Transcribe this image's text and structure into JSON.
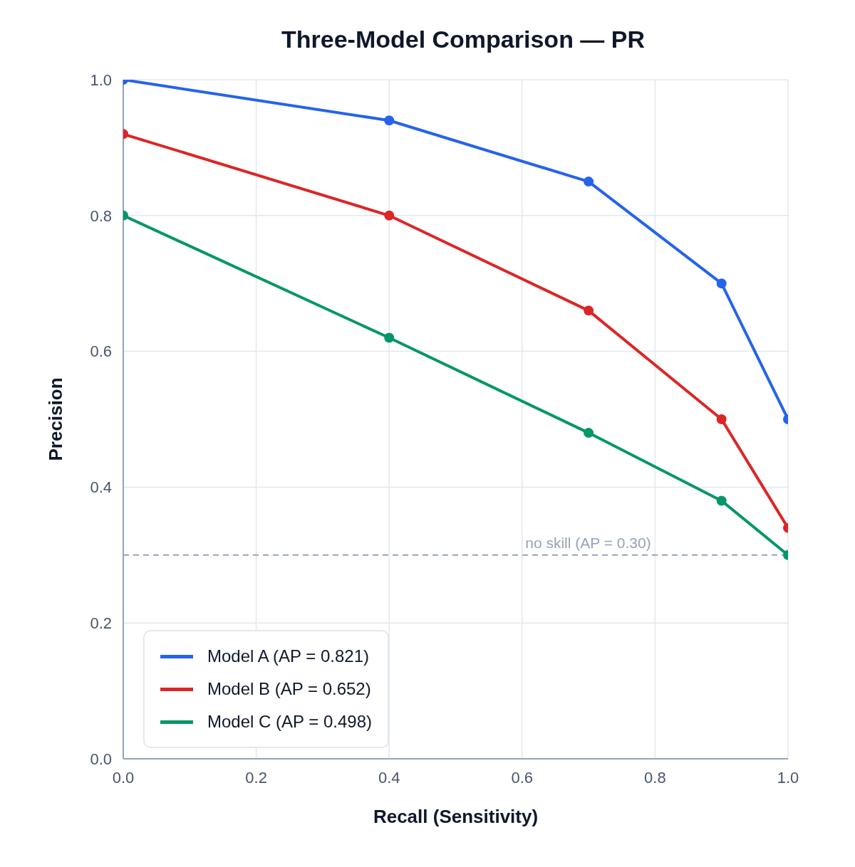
{
  "chart_data": {
    "type": "line",
    "title": "Three-Model Comparison — PR",
    "xlabel": "Recall (Sensitivity)",
    "ylabel": "Precision",
    "x": [
      0,
      0.4,
      0.7,
      0.9,
      1.0
    ],
    "series": [
      {
        "name": "Model A (AP = 0.821)",
        "color": "#2563eb",
        "values": [
          1.0,
          0.94,
          0.85,
          0.7,
          0.5
        ]
      },
      {
        "name": "Model B (AP = 0.652)",
        "color": "#dc2626",
        "values": [
          0.92,
          0.8,
          0.66,
          0.5,
          0.34
        ]
      },
      {
        "name": "Model C (AP = 0.498)",
        "color": "#059669",
        "values": [
          0.8,
          0.62,
          0.48,
          0.38,
          0.3
        ]
      }
    ],
    "xlim": [
      0,
      1
    ],
    "ylim": [
      0,
      1
    ],
    "xticks": [
      {
        "value": 0,
        "label": "0.0"
      },
      {
        "value": 0.2,
        "label": "0.2"
      },
      {
        "value": 0.4,
        "label": "0.4"
      },
      {
        "value": 0.6,
        "label": "0.6"
      },
      {
        "value": 0.8,
        "label": "0.8"
      },
      {
        "value": 1,
        "label": "1.0"
      }
    ],
    "yticks": [
      {
        "value": 0,
        "label": "0.0"
      },
      {
        "value": 0.2,
        "label": "0.2"
      },
      {
        "value": 0.4,
        "label": "0.4"
      },
      {
        "value": 0.6,
        "label": "0.6"
      },
      {
        "value": 0.8,
        "label": "0.8"
      },
      {
        "value": 1,
        "label": "1.0"
      }
    ],
    "ref_lines": [
      {
        "axis": "y",
        "value": 0.3,
        "label": "no skill (AP = 0.30)",
        "color": "#94a3b8",
        "line_style": "dashed"
      }
    ],
    "grid": true,
    "legend": "bottom left",
    "marker": "circle",
    "line_style": "solid"
  }
}
